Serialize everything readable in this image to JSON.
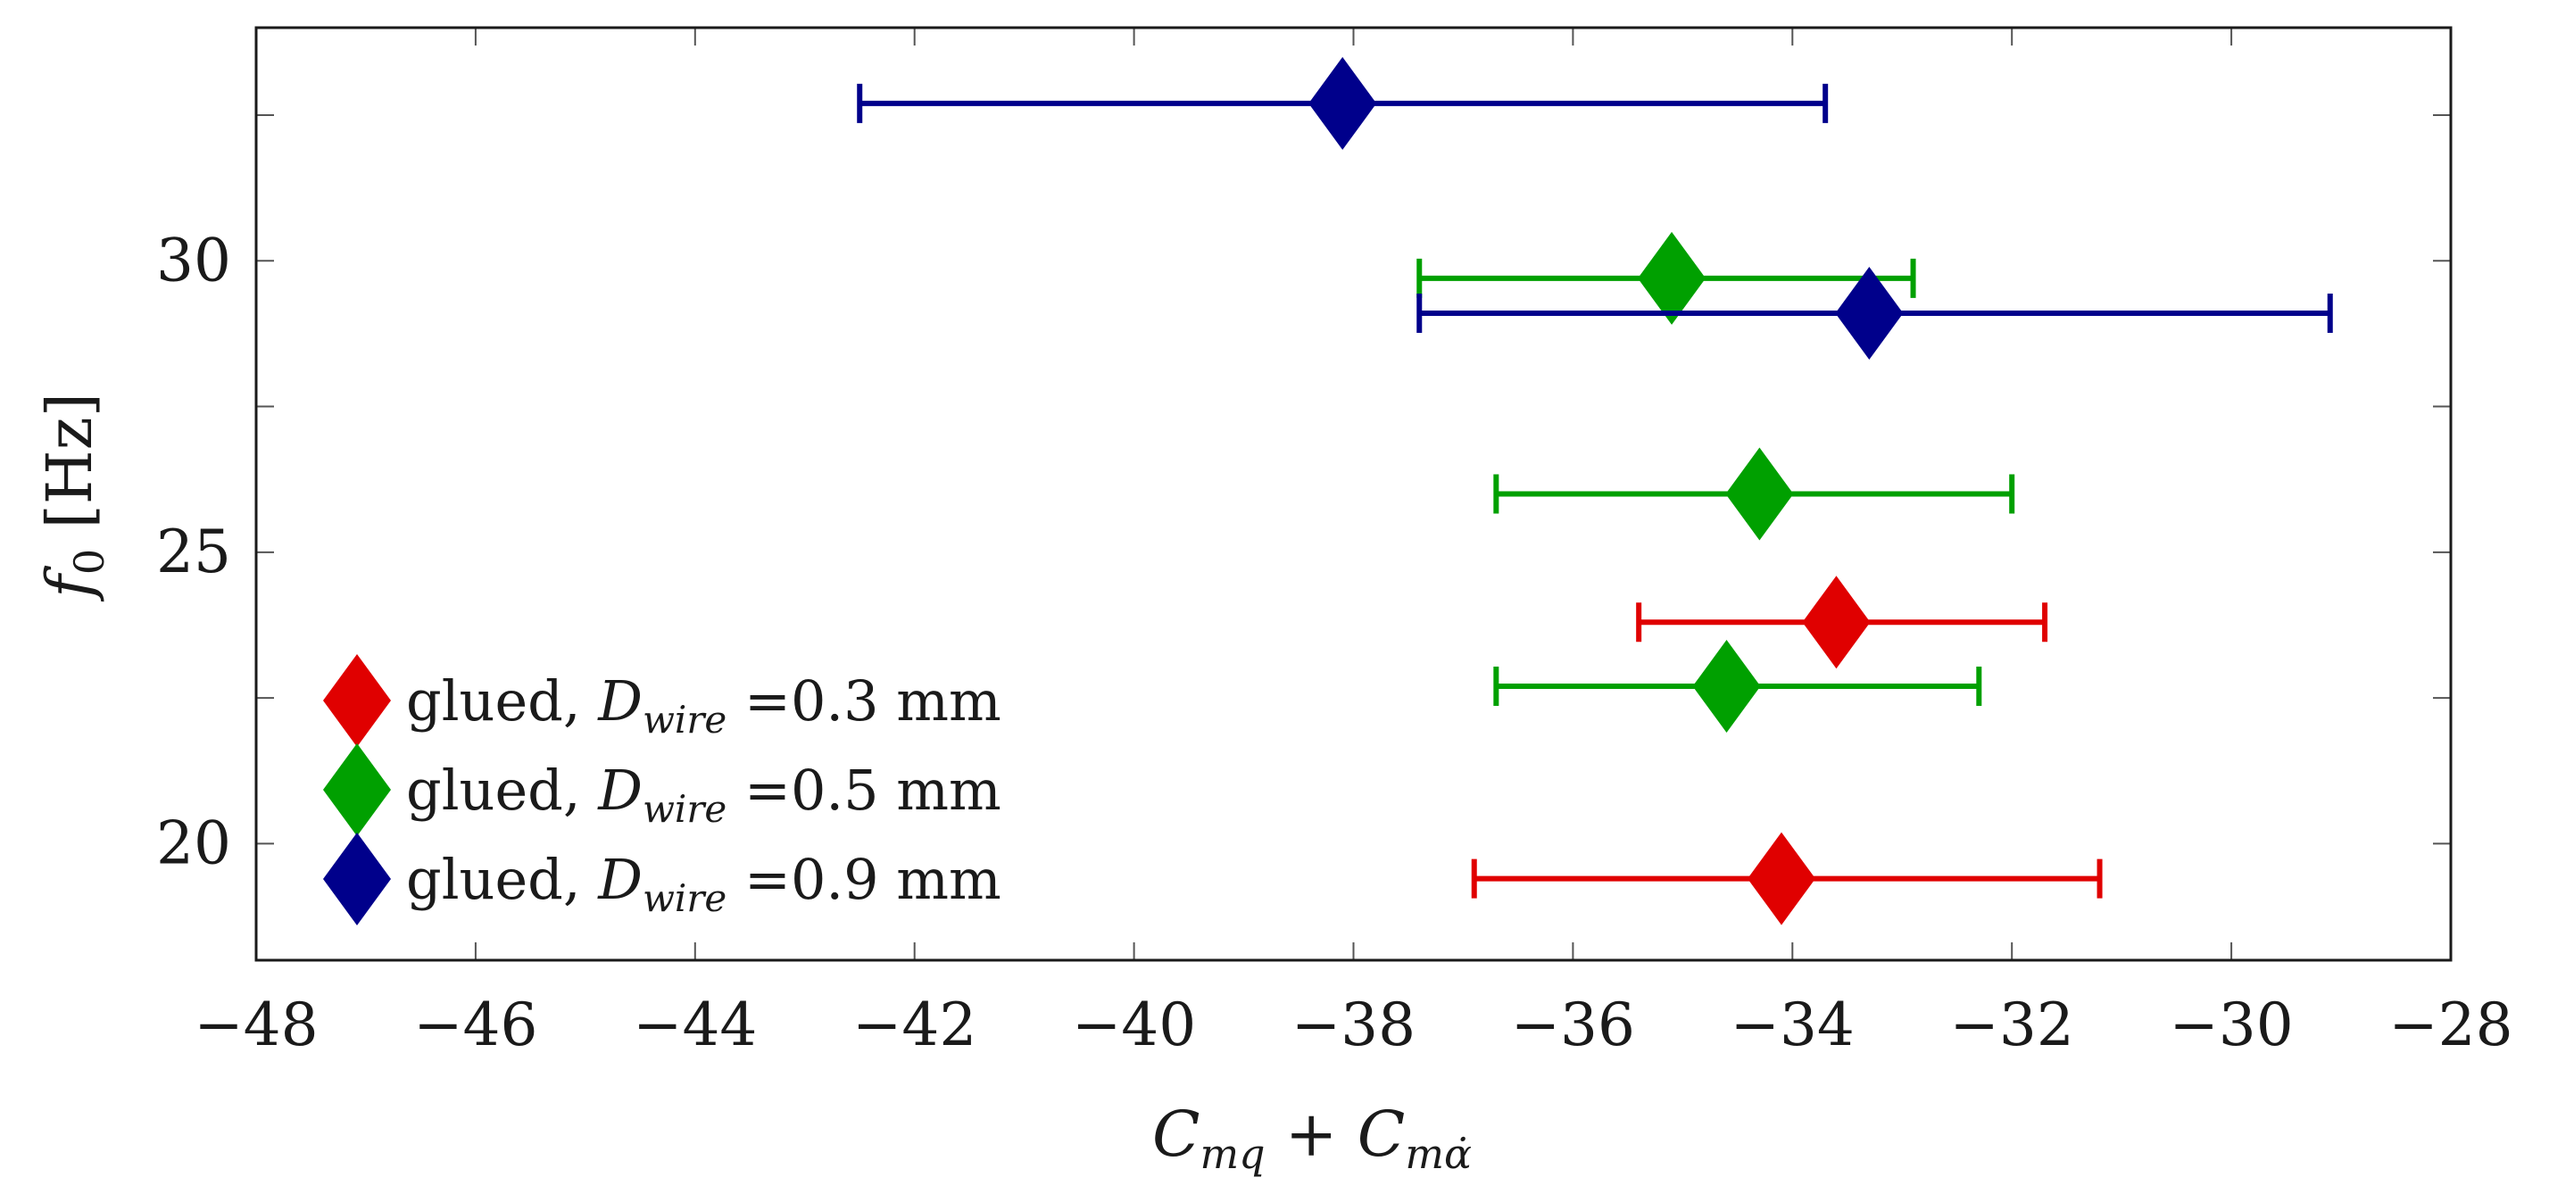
{
  "chart_data": {
    "type": "scatter",
    "title": "",
    "xlabel": "C_mq + C_mα̇",
    "ylabel": "f_0 [Hz]",
    "xlim": [
      -48,
      -28
    ],
    "ylim": [
      18,
      34
    ],
    "xticks": [
      -48,
      -46,
      -44,
      -42,
      -40,
      -38,
      -36,
      -34,
      -32,
      -30,
      -28
    ],
    "xtick_labels": [
      "−48",
      "−46",
      "−44",
      "−42",
      "−40",
      "−38",
      "−36",
      "−34",
      "−32",
      "−30",
      "−28"
    ],
    "yticks": [
      20,
      25,
      30
    ],
    "ytick_labels": [
      "20",
      "25",
      "30"
    ],
    "legend_position": "bottom-left",
    "series": [
      {
        "name": "glued, D_wire =0.3 mm",
        "legend_prefix": "glued, ",
        "legend_symbol": "D",
        "legend_subscript": "wire",
        "legend_value": " =0.3 mm",
        "color": "#e00000",
        "points": [
          {
            "x": -34.1,
            "y": 19.4,
            "xerr_low": -36.9,
            "xerr_high": -31.2
          },
          {
            "x": -33.6,
            "y": 23.8,
            "xerr_low": -35.4,
            "xerr_high": -31.7
          }
        ]
      },
      {
        "name": "glued, D_wire =0.5 mm",
        "legend_prefix": "glued, ",
        "legend_symbol": "D",
        "legend_subscript": "wire",
        "legend_value": " =0.5 mm",
        "color": "#00a000",
        "points": [
          {
            "x": -34.6,
            "y": 22.7,
            "xerr_low": -36.7,
            "xerr_high": -32.3
          },
          {
            "x": -34.3,
            "y": 26.0,
            "xerr_low": -36.7,
            "xerr_high": -32.0
          },
          {
            "x": -35.1,
            "y": 29.7,
            "xerr_low": -37.4,
            "xerr_high": -32.9
          }
        ]
      },
      {
        "name": "glued, D_wire =0.9 mm",
        "legend_prefix": "glued, ",
        "legend_symbol": "D",
        "legend_subscript": "wire",
        "legend_value": " =0.9 mm",
        "color": "#00008b",
        "points": [
          {
            "x": -33.3,
            "y": 29.1,
            "xerr_low": -37.4,
            "xerr_high": -29.1
          },
          {
            "x": -38.1,
            "y": 32.7,
            "xerr_low": -42.5,
            "xerr_high": -33.7
          }
        ]
      }
    ]
  }
}
